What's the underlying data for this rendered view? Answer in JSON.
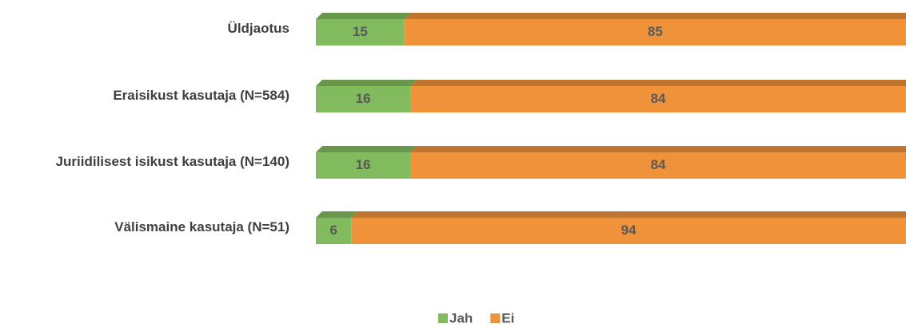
{
  "chart_data": {
    "type": "stacked-bar-horizontal",
    "categories": [
      "Üldjaotus",
      "Eraisikust kasutaja (N=584)",
      "Juriidilisest isikust kasutaja (N=140)",
      "Välismaine kasutaja (N=51)"
    ],
    "series": [
      {
        "name": "Jah",
        "color": "#82bb5e",
        "values": [
          15,
          16,
          16,
          6
        ]
      },
      {
        "name": "Ei",
        "color": "#f0923a",
        "values": [
          85,
          84,
          84,
          94
        ]
      }
    ],
    "legend": "bottom"
  }
}
